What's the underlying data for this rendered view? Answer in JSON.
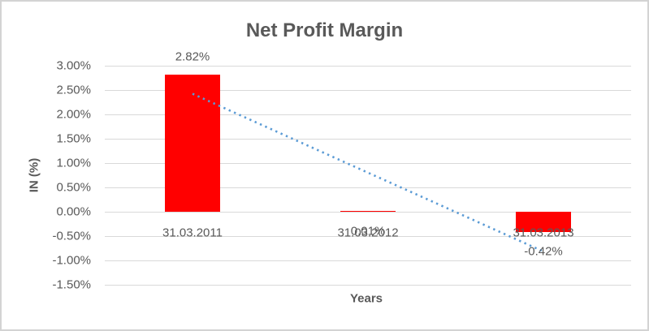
{
  "chart_data": {
    "type": "bar",
    "title": "Net Profit Margin",
    "xlabel": "Years",
    "ylabel": "IN (%)",
    "categories": [
      "31.03.2011",
      "31.03.2012",
      "31.03.2013"
    ],
    "values": [
      2.82,
      0.01,
      -0.42
    ],
    "data_labels": [
      "2.82%",
      "0.01%",
      "-0.42%"
    ],
    "y_ticks": [
      "3.00%",
      "2.50%",
      "2.00%",
      "1.50%",
      "1.00%",
      "0.50%",
      "0.00%",
      "-0.50%",
      "-1.00%",
      "-1.50%"
    ],
    "ylim": [
      -1.5,
      3.0
    ],
    "y_tick_step": 0.5,
    "grid": true,
    "legend": "none",
    "bar_color": "#ff0000",
    "trendline": {
      "type": "linear",
      "style": "dotted",
      "color": "#5b9bd5"
    },
    "colors": {
      "text": "#595959",
      "gridline": "#d9d9d9",
      "border": "#d3d3d3",
      "background": "#ffffff"
    }
  }
}
